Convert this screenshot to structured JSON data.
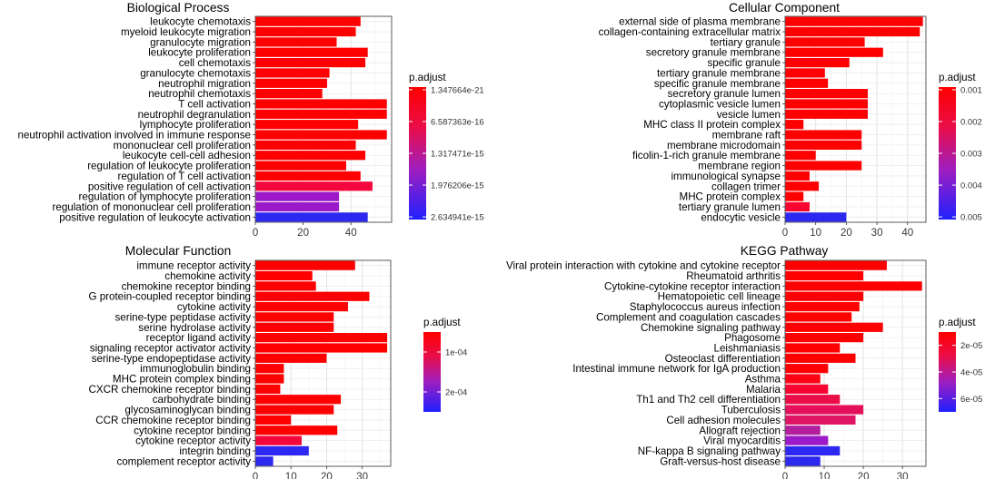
{
  "chart_data": [
    {
      "type": "bar",
      "orientation": "horizontal",
      "title": "Biological Process",
      "categories": [
        "leukocyte chemotaxis",
        "myeloid leukocyte migration",
        "granulocyte migration",
        "leukocyte proliferation",
        "cell chemotaxis",
        "granulocyte chemotaxis",
        "neutrophil migration",
        "neutrophil chemotaxis",
        "T cell activation",
        "neutrophil degranulation",
        "lymphocyte proliferation",
        "neutrophil activation involved in immune response",
        "mononuclear cell proliferation",
        "leukocyte cell-cell adhesion",
        "regulation of leukocyte proliferation",
        "regulation of T cell activation",
        "positive regulation of cell activation",
        "regulation of lymphocyte proliferation",
        "regulation of mononuclear cell proliferation",
        "positive regulation of leukocyte activation"
      ],
      "values": [
        44,
        42,
        34,
        47,
        46,
        31,
        30,
        28,
        55,
        55,
        43,
        55,
        42,
        46,
        38,
        44,
        49,
        35,
        35,
        47
      ],
      "colors": [
        "#fe0000",
        "#fe0000",
        "#fe0000",
        "#fe0000",
        "#fe0000",
        "#fe0000",
        "#fe0000",
        "#fe0000",
        "#fe0000",
        "#fe0000",
        "#fe0000",
        "#fe0000",
        "#fe0000",
        "#fe0000",
        "#fe0000",
        "#fe0000",
        "#f4073c",
        "#9b19c8",
        "#9b19c8",
        "#2d28f0"
      ],
      "xlim": [
        0,
        57
      ],
      "xticks": [
        "0",
        "20",
        "40"
      ],
      "xtick_values": [
        0,
        20,
        40
      ],
      "legend": {
        "title": "p.adjust",
        "labels": [
          "1.347664e-21",
          "6.587363e-16",
          "1.317471e-15",
          "1.976206e-15",
          "2.634941e-15"
        ]
      }
    },
    {
      "type": "bar",
      "orientation": "horizontal",
      "title": "Cellular Component",
      "categories": [
        "external side of plasma membrane",
        "collagen-containing extracellular matrix",
        "tertiary granule",
        "secretory granule membrane",
        "specific granule",
        "tertiary granule membrane",
        "specific granule membrane",
        "secretory granule lumen",
        "cytoplasmic vesicle lumen",
        "vesicle lumen",
        "MHC class II protein complex",
        "membrane raft",
        "membrane microdomain",
        "ficolin-1-rich granule membrane",
        "membrane region",
        "immunological synapse",
        "collagen trimer",
        "MHC protein complex",
        "tertiary granule lumen",
        "endocytic vesicle"
      ],
      "values": [
        45,
        44,
        26,
        32,
        21,
        13,
        14,
        27,
        27,
        27,
        6,
        25,
        25,
        10,
        25,
        8,
        11,
        6,
        8,
        20
      ],
      "colors": [
        "#fe0000",
        "#fe0000",
        "#fe0000",
        "#fe0000",
        "#fe0000",
        "#fe0000",
        "#fe0000",
        "#fe0000",
        "#fe0000",
        "#fe0000",
        "#fe0000",
        "#fe0000",
        "#fe0000",
        "#fe0000",
        "#fe0000",
        "#fe0000",
        "#fe0000",
        "#fe0000",
        "#f70530",
        "#2d28f0"
      ],
      "xlim": [
        0,
        46
      ],
      "xticks": [
        "0",
        "10",
        "20",
        "30",
        "40"
      ],
      "xtick_values": [
        0,
        10,
        20,
        30,
        40
      ],
      "legend": {
        "title": "p.adjust",
        "labels": [
          "0.001",
          "0.002",
          "0.003",
          "0.004",
          "0.005"
        ]
      }
    },
    {
      "type": "bar",
      "orientation": "horizontal",
      "title": "Molecular Function",
      "categories": [
        "immune receptor activity",
        "chemokine activity",
        "chemokine receptor binding",
        "G protein-coupled receptor binding",
        "cytokine activity",
        "serine-type peptidase activity",
        "serine hydrolase activity",
        "receptor ligand activity",
        "signaling receptor activator activity",
        "serine-type endopeptidase activity",
        "immunoglobulin binding",
        "MHC protein complex binding",
        "CXCR chemokine receptor binding",
        "carbohydrate binding",
        "glycosaminoglycan binding",
        "CCR chemokine receptor binding",
        "cytokine receptor binding",
        "cytokine receptor activity",
        "integrin binding",
        "complement receptor activity"
      ],
      "values": [
        28,
        16,
        17,
        32,
        26,
        22,
        22,
        37,
        37,
        20,
        8,
        8,
        7,
        24,
        22,
        10,
        23,
        13,
        15,
        5
      ],
      "colors": [
        "#fe0000",
        "#fe0000",
        "#fe0000",
        "#fe0000",
        "#fe0000",
        "#fe0000",
        "#fe0000",
        "#fe0000",
        "#fe0000",
        "#fe0000",
        "#fe0000",
        "#fe0000",
        "#fe0000",
        "#fe0000",
        "#fe0000",
        "#fe0000",
        "#fe0000",
        "#f4073c",
        "#2d28f0",
        "#2d28f0"
      ],
      "xlim": [
        0,
        38
      ],
      "xticks": [
        "0",
        "10",
        "20",
        "30"
      ],
      "xtick_values": [
        0,
        10,
        20,
        30
      ],
      "legend": {
        "title": "p.adjust",
        "labels": [
          "1e-04",
          "2e-04"
        ]
      }
    },
    {
      "type": "bar",
      "orientation": "horizontal",
      "title": "KEGG Pathway",
      "categories": [
        "Viral protein interaction with cytokine and cytokine receptor",
        "Rheumatoid arthritis",
        "Cytokine-cytokine receptor interaction",
        "Hematopoietic cell lineage",
        "Staphylococcus aureus infection",
        "Complement and coagulation cascades",
        "Chemokine signaling pathway",
        "Phagosome",
        "Leishmaniasis",
        "Osteoclast differentiation",
        "Intestinal immune network for IgA production",
        "Asthma",
        "Malaria",
        "Th1 and Th2 cell differentiation",
        "Tuberculosis",
        "Cell adhesion molecules",
        "Allograft rejection",
        "Viral myocarditis",
        "NF-kappa B signaling pathway",
        "Graft-versus-host disease"
      ],
      "values": [
        26,
        20,
        35,
        20,
        19,
        17,
        25,
        20,
        14,
        18,
        11,
        9,
        11,
        14,
        20,
        18,
        9,
        11,
        14,
        9
      ],
      "colors": [
        "#fe0000",
        "#fe0000",
        "#fe0000",
        "#fe0000",
        "#fe0000",
        "#fe0000",
        "#fe0000",
        "#fe0000",
        "#fe0000",
        "#fe0000",
        "#fe0000",
        "#ff0015",
        "#f70530",
        "#ea0d48",
        "#e4105a",
        "#de1464",
        "#b21e9c",
        "#9b19c8",
        "#2d28f0",
        "#2d28f0"
      ],
      "xlim": [
        0,
        36
      ],
      "xticks": [
        "0",
        "10",
        "20",
        "30"
      ],
      "xtick_values": [
        0,
        10,
        20,
        30
      ],
      "legend": {
        "title": "p.adjust",
        "labels": [
          "2e-05",
          "4e-05",
          "6e-05"
        ]
      }
    }
  ]
}
